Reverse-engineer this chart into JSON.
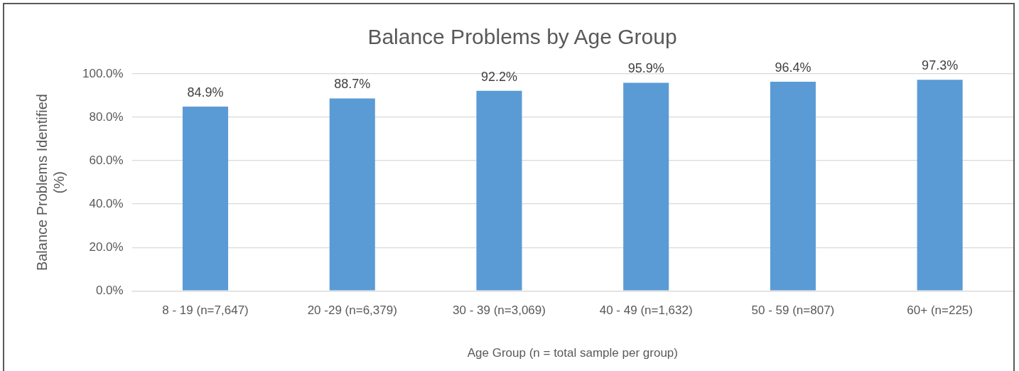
{
  "chart_data": {
    "type": "bar",
    "title": "Balance Problems by Age Group",
    "xlabel": "Age Group (n = total sample per group)",
    "ylabel": "Balance Problems Identified (%)",
    "categories": [
      "8 - 19 (n=7,647)",
      "20 -29 (n=6,379)",
      "30 - 39 (n=3,069)",
      "40 - 49 (n=1,632)",
      "50 - 59 (n=807)",
      "60+ (n=225)"
    ],
    "values": [
      84.9,
      88.7,
      92.2,
      95.9,
      96.4,
      97.3
    ],
    "value_labels": [
      "84.9%",
      "88.7%",
      "92.2%",
      "95.9%",
      "96.4%",
      "97.3%"
    ],
    "color": "#5b9bd5",
    "ylim": [
      0,
      100
    ],
    "yticks": [
      {
        "value": 0,
        "label": "0.0%"
      },
      {
        "value": 20,
        "label": "20.0%"
      },
      {
        "value": 40,
        "label": "40.0%"
      },
      {
        "value": 60,
        "label": "60.0%"
      },
      {
        "value": 80,
        "label": "80.0%"
      },
      {
        "value": 100,
        "label": "100.0%"
      }
    ],
    "grid": "y",
    "legend": false
  }
}
